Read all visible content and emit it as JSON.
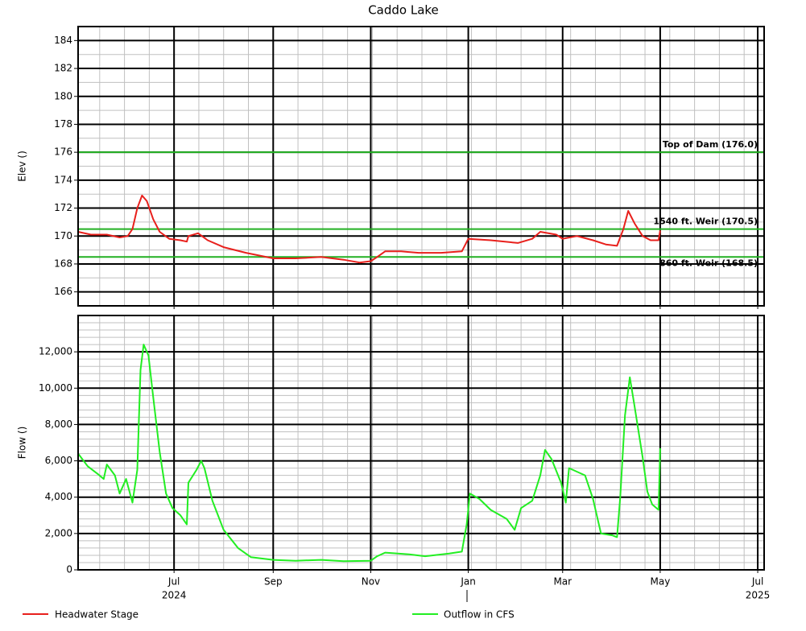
{
  "chart_data": [
    {
      "type": "line",
      "title": "Caddo Lake",
      "ylabel": "Elev ()",
      "xlim": [
        "2024-05-02",
        "2025-07-05"
      ],
      "xticks": [
        {
          "value": "2024-07",
          "label": "Jul"
        },
        {
          "value": "2024-09",
          "label": "Sep"
        },
        {
          "value": "2024-11",
          "label": "Nov"
        },
        {
          "value": "2025-01",
          "label": "Jan"
        },
        {
          "value": "2025-03",
          "label": "Mar"
        },
        {
          "value": "2025-05",
          "label": "May"
        },
        {
          "value": "2025-07",
          "label": "Jul"
        }
      ],
      "ylim": [
        165,
        185
      ],
      "yticks": [
        166,
        168,
        170,
        172,
        174,
        176,
        178,
        180,
        182,
        184
      ],
      "grid": true,
      "reference_lines": [
        {
          "label": "Top of Dam (176.0)",
          "value": 176,
          "color": "#22b022"
        },
        {
          "label": "1540 ft. Weir (170.5)",
          "value": 170.5,
          "color": "#22b022"
        },
        {
          "label": "860 ft. Weir (168.5)",
          "value": 168.5,
          "color": "#22b022"
        }
      ],
      "series": [
        {
          "name": "Headwater Stage",
          "color": "#e8201c",
          "x": [
            "2024-05-02",
            "2024-05-10",
            "2024-05-20",
            "2024-05-28",
            "2024-06-02",
            "2024-06-05",
            "2024-06-08",
            "2024-06-11",
            "2024-06-14",
            "2024-06-18",
            "2024-06-22",
            "2024-06-28",
            "2024-07-05",
            "2024-07-09",
            "2024-07-10",
            "2024-07-16",
            "2024-07-22",
            "2024-08-01",
            "2024-08-15",
            "2024-09-01",
            "2024-09-15",
            "2024-10-01",
            "2024-10-15",
            "2024-10-25",
            "2024-11-01",
            "2024-11-05",
            "2024-11-10",
            "2024-11-20",
            "2024-12-01",
            "2024-12-15",
            "2024-12-28",
            "2025-01-01",
            "2025-01-15",
            "2025-02-01",
            "2025-02-10",
            "2025-02-15",
            "2025-02-25",
            "2025-03-01",
            "2025-03-10",
            "2025-03-20",
            "2025-03-28",
            "2025-04-04",
            "2025-04-08",
            "2025-04-11",
            "2025-04-15",
            "2025-04-20",
            "2025-04-25",
            "2025-04-30",
            "2025-05-01"
          ],
          "values": [
            170.3,
            170.1,
            170.1,
            169.9,
            170.0,
            170.5,
            172.0,
            172.9,
            172.5,
            171.2,
            170.3,
            169.8,
            169.7,
            169.6,
            170.0,
            170.2,
            169.7,
            169.2,
            168.8,
            168.4,
            168.4,
            168.5,
            168.3,
            168.1,
            168.2,
            168.5,
            168.9,
            168.9,
            168.8,
            168.8,
            168.9,
            169.8,
            169.7,
            169.5,
            169.8,
            170.3,
            170.1,
            169.8,
            170.0,
            169.7,
            169.4,
            169.3,
            170.5,
            171.8,
            170.9,
            170.0,
            169.7,
            169.7,
            170.4
          ]
        }
      ]
    },
    {
      "type": "line",
      "ylabel": "Flow ()",
      "xlim": [
        "2024-05-02",
        "2025-07-05"
      ],
      "xticks": [
        {
          "value": "2024-07",
          "label": "Jul"
        },
        {
          "value": "2024-09",
          "label": "Sep"
        },
        {
          "value": "2024-11",
          "label": "Nov"
        },
        {
          "value": "2025-01",
          "label": "Jan"
        },
        {
          "value": "2025-03",
          "label": "Mar"
        },
        {
          "value": "2025-05",
          "label": "May"
        },
        {
          "value": "2025-07",
          "label": "Jul"
        }
      ],
      "year_labels": [
        {
          "value": "2024-07",
          "label": "2024"
        },
        {
          "value": "2025-07",
          "label": "2025"
        }
      ],
      "ylim": [
        0,
        14000
      ],
      "yticks": [
        0,
        {
          "value": 2000,
          "label": "2,000"
        },
        {
          "value": 4000,
          "label": "4,000"
        },
        {
          "value": 6000,
          "label": "6,000"
        },
        {
          "value": 8000,
          "label": "8,000"
        },
        {
          "value": 10000,
          "label": "10,000"
        },
        {
          "value": 12000,
          "label": "12,000"
        }
      ],
      "grid": true,
      "series": [
        {
          "name": "Outflow in CFS",
          "color": "#22ee22",
          "x": [
            "2024-05-02",
            "2024-05-08",
            "2024-05-14",
            "2024-05-18",
            "2024-05-20",
            "2024-05-25",
            "2024-05-28",
            "2024-06-01",
            "2024-06-05",
            "2024-06-08",
            "2024-06-10",
            "2024-06-12",
            "2024-06-15",
            "2024-06-18",
            "2024-06-22",
            "2024-06-26",
            "2024-06-30",
            "2024-07-05",
            "2024-07-09",
            "2024-07-10",
            "2024-07-15",
            "2024-07-18",
            "2024-07-20",
            "2024-07-25",
            "2024-08-01",
            "2024-08-10",
            "2024-08-18",
            "2024-09-01",
            "2024-09-15",
            "2024-10-01",
            "2024-10-15",
            "2024-11-01",
            "2024-11-05",
            "2024-11-10",
            "2024-11-25",
            "2024-12-05",
            "2024-12-20",
            "2024-12-28",
            "2024-12-31",
            "2025-01-02",
            "2025-01-08",
            "2025-01-15",
            "2025-01-25",
            "2025-01-30",
            "2025-02-03",
            "2025-02-10",
            "2025-02-15",
            "2025-02-18",
            "2025-02-22",
            "2025-02-28",
            "2025-03-03",
            "2025-03-05",
            "2025-03-10",
            "2025-03-15",
            "2025-03-20",
            "2025-03-25",
            "2025-04-01",
            "2025-04-04",
            "2025-04-06",
            "2025-04-09",
            "2025-04-12",
            "2025-04-15",
            "2025-04-20",
            "2025-04-23",
            "2025-04-26",
            "2025-04-30",
            "2025-05-01"
          ],
          "values": [
            6400,
            5700,
            5300,
            5000,
            5800,
            5200,
            4200,
            5000,
            3700,
            5500,
            11000,
            12400,
            11800,
            9500,
            6500,
            4200,
            3400,
            3000,
            2500,
            4800,
            5500,
            6000,
            5600,
            3800,
            2200,
            1200,
            700,
            550,
            500,
            550,
            480,
            500,
            750,
            950,
            850,
            750,
            900,
            1000,
            2500,
            4200,
            3900,
            3300,
            2800,
            2200,
            3400,
            3800,
            5200,
            6600,
            6100,
            4800,
            3700,
            5600,
            5400,
            5200,
            3900,
            2000,
            1900,
            1800,
            4000,
            8500,
            10600,
            9000,
            6200,
            4300,
            3600,
            3300,
            6700
          ]
        }
      ]
    }
  ]
}
